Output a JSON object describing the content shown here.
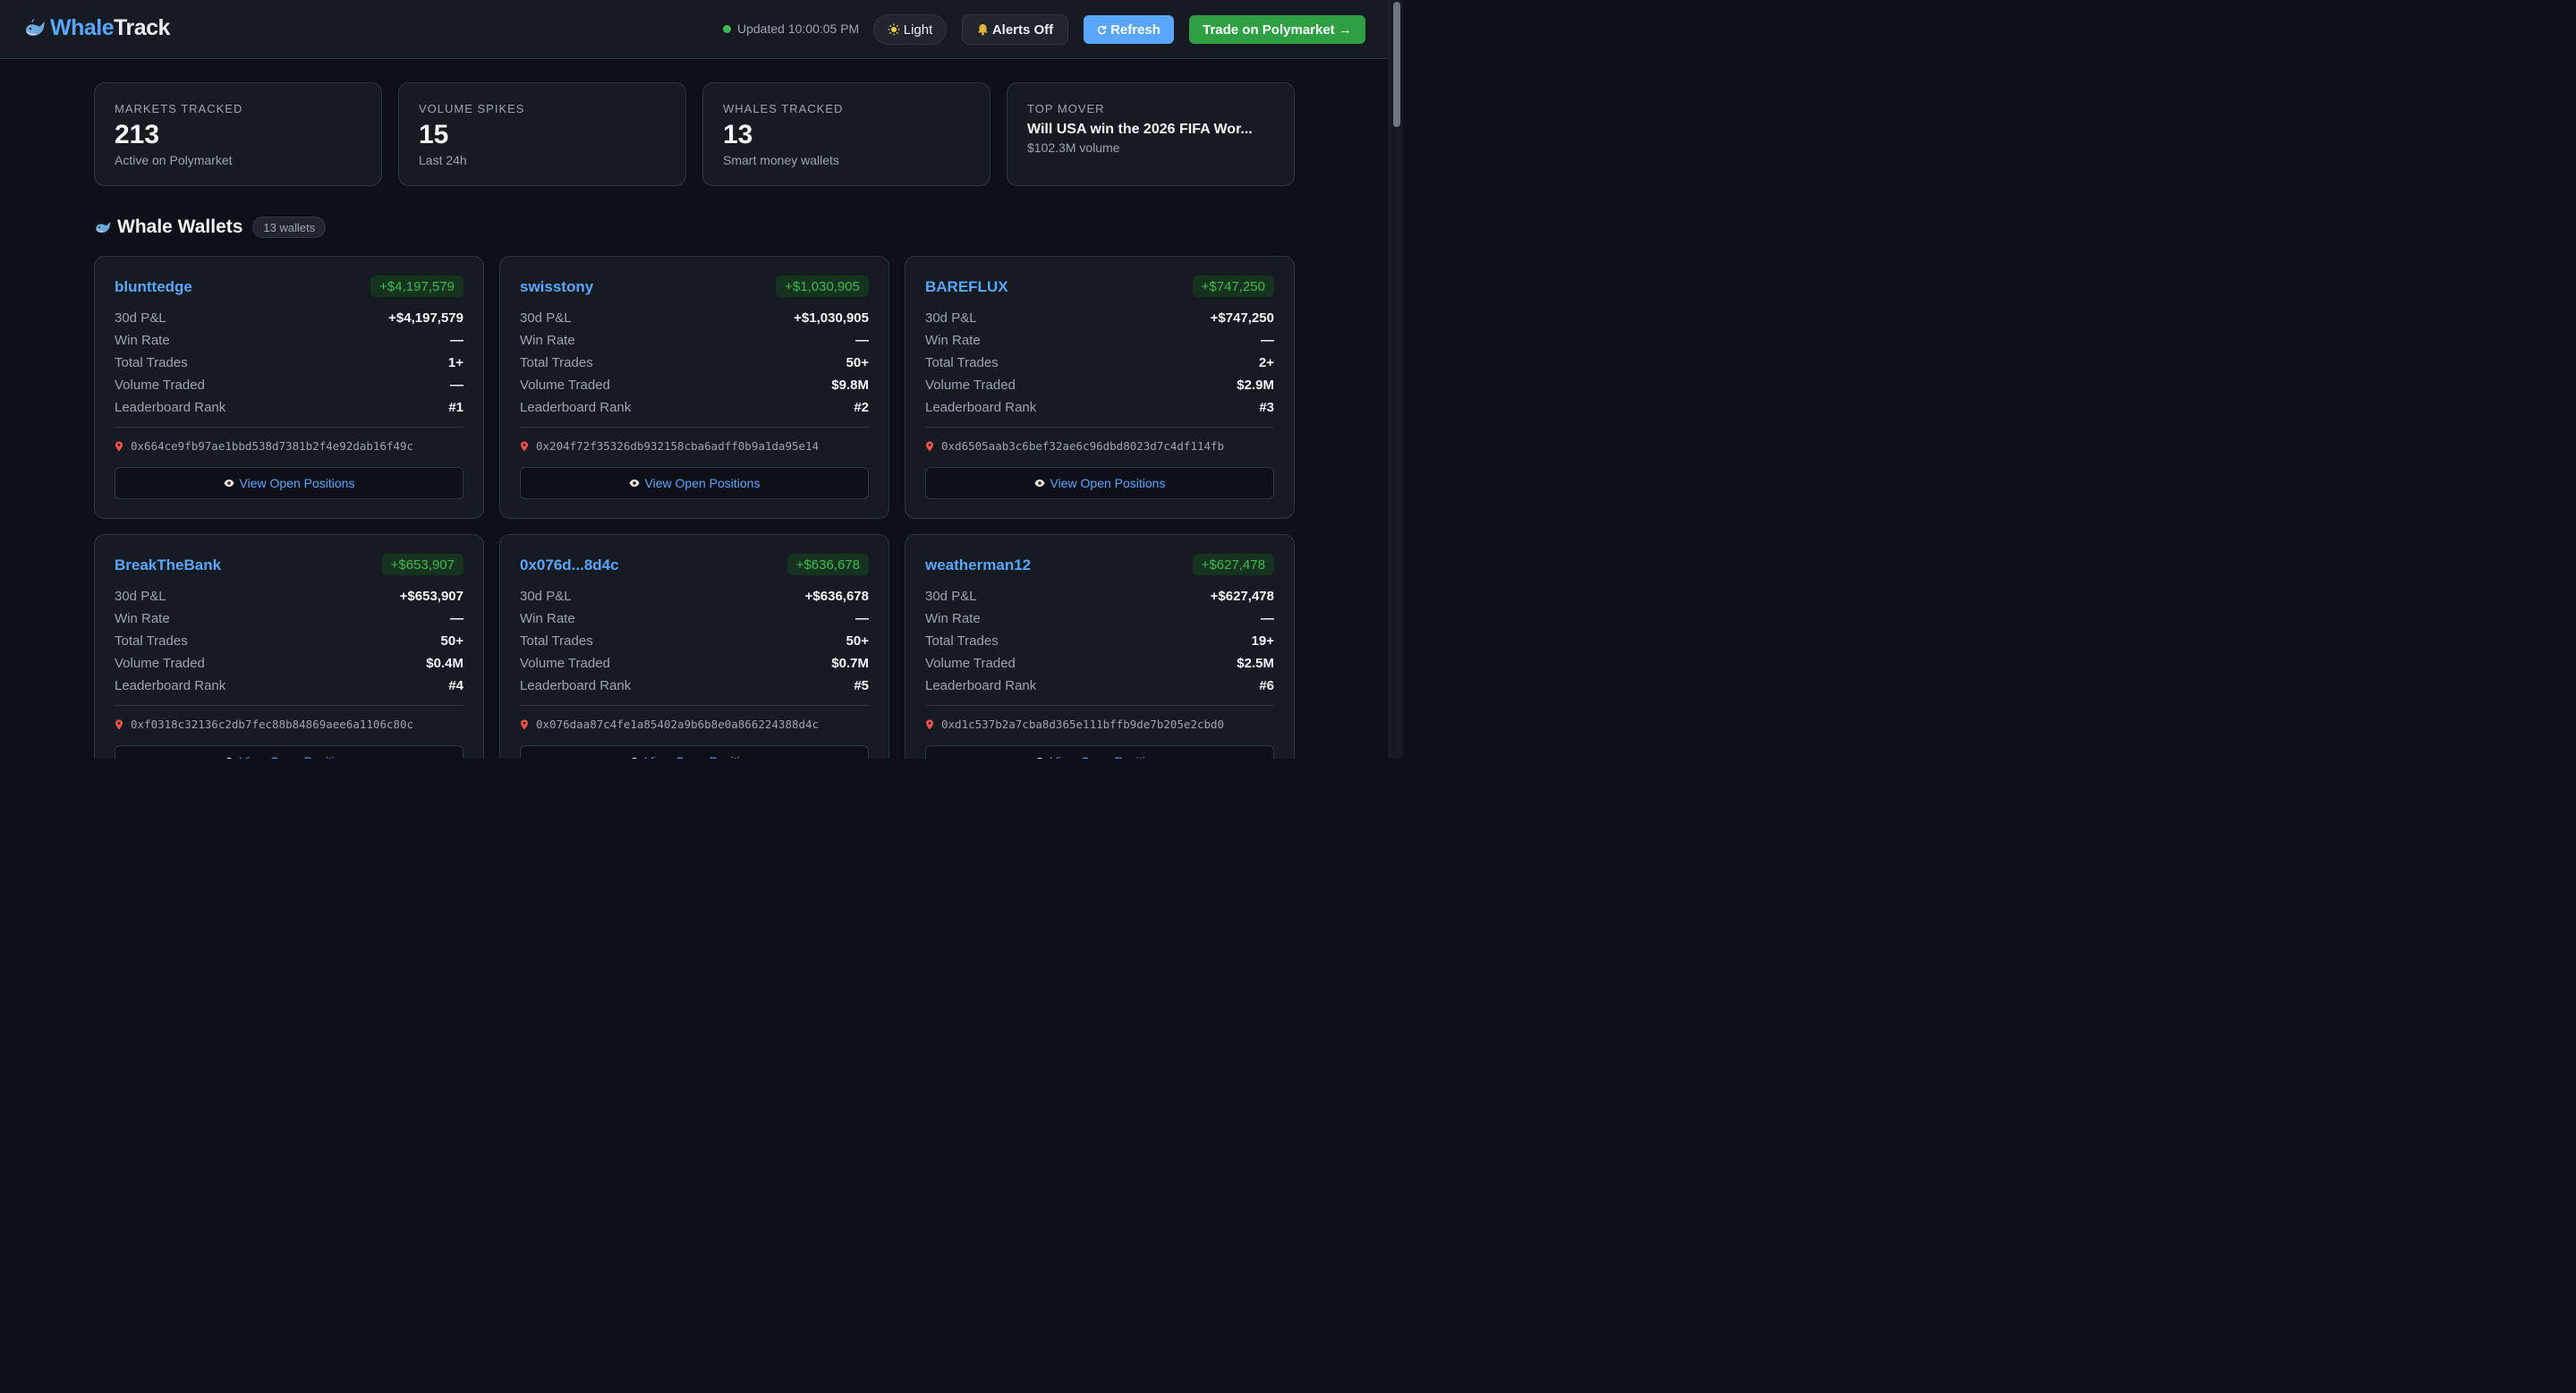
{
  "header": {
    "brand_part1": "Whale",
    "brand_part2": "Track",
    "status_text": "Updated 10:00:05 PM",
    "light_label": "Light",
    "alerts_label": "Alerts Off",
    "refresh_label": "Refresh",
    "trade_label": "Trade on Polymarket →"
  },
  "stats": [
    {
      "label": "Markets Tracked",
      "value": "213",
      "sub": "Active on Polymarket"
    },
    {
      "label": "Volume Spikes",
      "value": "15",
      "sub": "Last 24h"
    },
    {
      "label": "Whales Tracked",
      "value": "13",
      "sub": "Smart money wallets"
    }
  ],
  "top_mover": {
    "label": "Top Mover",
    "title": "Will USA win the 2026 FIFA Wor...",
    "sub": "$102.3M volume"
  },
  "section": {
    "title": "Whale Wallets",
    "count": "13 wallets"
  },
  "row_labels": {
    "pnl": "30d P&L",
    "win_rate": "Win Rate",
    "total_trades": "Total Trades",
    "volume": "Volume Traded",
    "rank": "Leaderboard Rank"
  },
  "view_label": "View Open Positions",
  "wallets": [
    {
      "name": "blunttedge",
      "badge": "+$4,197,579",
      "pnl": "+$4,197,579",
      "win_rate": "—",
      "total_trades": "1+",
      "volume": "—",
      "rank": "#1",
      "address": "0x664ce9fb97ae1bbd538d7381b2f4e92dab16f49c"
    },
    {
      "name": "swisstony",
      "badge": "+$1,030,905",
      "pnl": "+$1,030,905",
      "win_rate": "—",
      "total_trades": "50+",
      "volume": "$9.8M",
      "rank": "#2",
      "address": "0x204f72f35326db932158cba6adff0b9a1da95e14"
    },
    {
      "name": "BAREFLUX",
      "badge": "+$747,250",
      "pnl": "+$747,250",
      "win_rate": "—",
      "total_trades": "2+",
      "volume": "$2.9M",
      "rank": "#3",
      "address": "0xd6505aab3c6bef32ae6c96dbd8023d7c4df114fb"
    },
    {
      "name": "BreakTheBank",
      "badge": "+$653,907",
      "pnl": "+$653,907",
      "win_rate": "—",
      "total_trades": "50+",
      "volume": "$0.4M",
      "rank": "#4",
      "address": "0xf0318c32136c2db7fec88b84869aee6a1106c80c"
    },
    {
      "name": "0x076d...8d4c",
      "badge": "+$636,678",
      "pnl": "+$636,678",
      "win_rate": "—",
      "total_trades": "50+",
      "volume": "$0.7M",
      "rank": "#5",
      "address": "0x076daa87c4fe1a85402a9b6b8e0a866224388d4c"
    },
    {
      "name": "weatherman12",
      "badge": "+$627,478",
      "pnl": "+$627,478",
      "win_rate": "—",
      "total_trades": "19+",
      "volume": "$2.5M",
      "rank": "#6",
      "address": "0xd1c537b2a7cba8d365e111bffb9de7b205e2cbd0"
    }
  ],
  "colors": {
    "background": "#0d1117",
    "card": "#161b22",
    "accent_blue": "#58a6ff",
    "accent_green": "#3fb950",
    "trade_green": "#2ea043"
  },
  "icons": {
    "brand": "whale-icon",
    "light": "sun-icon",
    "alerts": "bell-icon",
    "refresh": "refresh-icon",
    "address": "pin-icon",
    "view": "eye-icon"
  }
}
